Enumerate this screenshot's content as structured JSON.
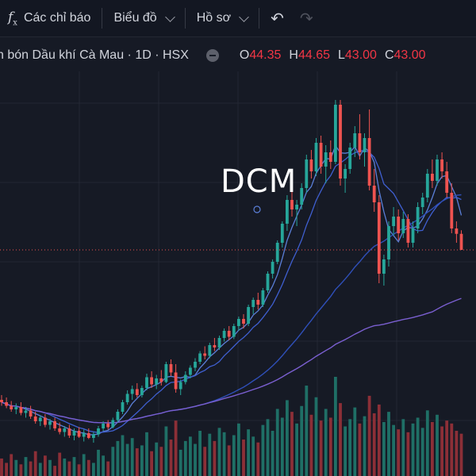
{
  "toolbar": {
    "indicators_icon": "function-fx-icon",
    "indicators_label": "Các chỉ báo",
    "chart_type_label": "Biểu đồ",
    "profile_label": "Hồ sơ",
    "undo_icon": "undo-arrow-icon",
    "redo_icon": "redo-arrow-icon"
  },
  "legend": {
    "title": "n bón Dầu khí Cà Mau · 1D · HSX",
    "open_label": "O",
    "open": "44.35",
    "high_label": "H",
    "high": "44.65",
    "low_label": "L",
    "low": "43.00",
    "close_label": "C",
    "close": "43.00"
  },
  "symbol": "DCM",
  "colors": {
    "background": "#161a25",
    "up": "#26a69a",
    "down": "#ef5350",
    "ma_fast": "#5b7fd8",
    "ma_mid": "#3f5fd0",
    "ma_slow": "#7a5fd0"
  },
  "chart_data": {
    "type": "candlestick",
    "last_price": 43.0,
    "candles": [
      {
        "o": 30.4,
        "h": 30.8,
        "l": 29.9,
        "c": 30.2
      },
      {
        "o": 30.2,
        "h": 30.6,
        "l": 29.7,
        "c": 29.9
      },
      {
        "o": 29.9,
        "h": 30.3,
        "l": 29.4,
        "c": 29.6
      },
      {
        "o": 29.6,
        "h": 30.1,
        "l": 29.2,
        "c": 29.8
      },
      {
        "o": 29.8,
        "h": 30.2,
        "l": 29.1,
        "c": 29.3
      },
      {
        "o": 29.3,
        "h": 29.8,
        "l": 28.9,
        "c": 29.5
      },
      {
        "o": 29.5,
        "h": 29.9,
        "l": 28.8,
        "c": 29.0
      },
      {
        "o": 29.0,
        "h": 29.4,
        "l": 28.4,
        "c": 28.6
      },
      {
        "o": 28.6,
        "h": 29.1,
        "l": 28.2,
        "c": 28.9
      },
      {
        "o": 28.9,
        "h": 29.2,
        "l": 28.1,
        "c": 28.3
      },
      {
        "o": 28.3,
        "h": 28.8,
        "l": 27.9,
        "c": 28.6
      },
      {
        "o": 28.6,
        "h": 28.9,
        "l": 27.8,
        "c": 28.0
      },
      {
        "o": 28.0,
        "h": 28.5,
        "l": 27.5,
        "c": 27.7
      },
      {
        "o": 27.7,
        "h": 28.2,
        "l": 27.3,
        "c": 28.0
      },
      {
        "o": 28.0,
        "h": 28.3,
        "l": 27.2,
        "c": 27.4
      },
      {
        "o": 27.4,
        "h": 28.0,
        "l": 27.0,
        "c": 27.8
      },
      {
        "o": 27.8,
        "h": 28.1,
        "l": 27.2,
        "c": 27.3
      },
      {
        "o": 27.3,
        "h": 27.9,
        "l": 26.9,
        "c": 27.6
      },
      {
        "o": 27.6,
        "h": 28.0,
        "l": 27.1,
        "c": 27.2
      },
      {
        "o": 27.2,
        "h": 27.7,
        "l": 26.8,
        "c": 27.5
      },
      {
        "o": 27.5,
        "h": 28.2,
        "l": 27.3,
        "c": 28.0
      },
      {
        "o": 28.0,
        "h": 28.6,
        "l": 27.8,
        "c": 28.4
      },
      {
        "o": 28.4,
        "h": 28.7,
        "l": 27.9,
        "c": 28.1
      },
      {
        "o": 28.1,
        "h": 28.9,
        "l": 28.0,
        "c": 28.7
      },
      {
        "o": 28.7,
        "h": 29.6,
        "l": 28.5,
        "c": 29.4
      },
      {
        "o": 29.4,
        "h": 30.4,
        "l": 29.2,
        "c": 30.2
      },
      {
        "o": 30.2,
        "h": 31.2,
        "l": 30.0,
        "c": 30.9
      },
      {
        "o": 30.9,
        "h": 31.6,
        "l": 30.4,
        "c": 31.3
      },
      {
        "o": 31.3,
        "h": 31.8,
        "l": 30.6,
        "c": 30.8
      },
      {
        "o": 30.8,
        "h": 31.6,
        "l": 30.6,
        "c": 31.4
      },
      {
        "o": 31.4,
        "h": 32.6,
        "l": 31.2,
        "c": 32.3
      },
      {
        "o": 32.3,
        "h": 32.8,
        "l": 31.4,
        "c": 31.7
      },
      {
        "o": 31.7,
        "h": 32.5,
        "l": 31.3,
        "c": 32.2
      },
      {
        "o": 32.2,
        "h": 32.9,
        "l": 31.6,
        "c": 31.9
      },
      {
        "o": 31.9,
        "h": 33.6,
        "l": 31.8,
        "c": 33.4
      },
      {
        "o": 33.4,
        "h": 33.8,
        "l": 32.4,
        "c": 32.7
      },
      {
        "o": 32.7,
        "h": 33.4,
        "l": 31.0,
        "c": 31.3
      },
      {
        "o": 31.3,
        "h": 32.1,
        "l": 30.8,
        "c": 31.9
      },
      {
        "o": 31.9,
        "h": 32.8,
        "l": 31.7,
        "c": 32.5
      },
      {
        "o": 32.5,
        "h": 33.3,
        "l": 32.2,
        "c": 33.1
      },
      {
        "o": 33.1,
        "h": 33.9,
        "l": 32.8,
        "c": 33.6
      },
      {
        "o": 33.6,
        "h": 34.5,
        "l": 33.4,
        "c": 34.3
      },
      {
        "o": 34.3,
        "h": 34.9,
        "l": 33.8,
        "c": 34.1
      },
      {
        "o": 34.1,
        "h": 35.2,
        "l": 33.9,
        "c": 35.0
      },
      {
        "o": 35.0,
        "h": 35.6,
        "l": 34.5,
        "c": 34.8
      },
      {
        "o": 34.8,
        "h": 35.8,
        "l": 34.6,
        "c": 35.6
      },
      {
        "o": 35.6,
        "h": 36.4,
        "l": 35.3,
        "c": 36.2
      },
      {
        "o": 36.2,
        "h": 36.6,
        "l": 35.4,
        "c": 35.7
      },
      {
        "o": 35.7,
        "h": 36.8,
        "l": 35.5,
        "c": 36.6
      },
      {
        "o": 36.6,
        "h": 37.4,
        "l": 36.2,
        "c": 37.2
      },
      {
        "o": 37.2,
        "h": 37.6,
        "l": 36.4,
        "c": 36.8
      },
      {
        "o": 36.8,
        "h": 38.4,
        "l": 36.6,
        "c": 38.2
      },
      {
        "o": 38.2,
        "h": 39.0,
        "l": 37.6,
        "c": 38.8
      },
      {
        "o": 38.8,
        "h": 39.4,
        "l": 38.0,
        "c": 38.4
      },
      {
        "o": 38.4,
        "h": 39.8,
        "l": 38.2,
        "c": 39.6
      },
      {
        "o": 39.6,
        "h": 41.2,
        "l": 39.4,
        "c": 41.0
      },
      {
        "o": 41.0,
        "h": 42.2,
        "l": 40.6,
        "c": 42.0
      },
      {
        "o": 42.0,
        "h": 43.8,
        "l": 41.8,
        "c": 43.6
      },
      {
        "o": 43.6,
        "h": 45.4,
        "l": 43.2,
        "c": 45.2
      },
      {
        "o": 45.2,
        "h": 47.6,
        "l": 44.6,
        "c": 47.2
      },
      {
        "o": 47.2,
        "h": 48.0,
        "l": 45.8,
        "c": 46.4
      },
      {
        "o": 46.4,
        "h": 47.2,
        "l": 45.0,
        "c": 46.8
      },
      {
        "o": 46.8,
        "h": 48.6,
        "l": 46.4,
        "c": 48.2
      },
      {
        "o": 48.2,
        "h": 51.0,
        "l": 47.8,
        "c": 50.6
      },
      {
        "o": 50.6,
        "h": 51.4,
        "l": 49.0,
        "c": 49.6
      },
      {
        "o": 49.6,
        "h": 52.4,
        "l": 49.2,
        "c": 52.0
      },
      {
        "o": 52.0,
        "h": 52.6,
        "l": 49.4,
        "c": 50.0
      },
      {
        "o": 50.0,
        "h": 51.8,
        "l": 48.6,
        "c": 51.2
      },
      {
        "o": 51.2,
        "h": 52.2,
        "l": 49.8,
        "c": 50.4
      },
      {
        "o": 50.4,
        "h": 55.6,
        "l": 50.2,
        "c": 55.2
      },
      {
        "o": 55.2,
        "h": 55.6,
        "l": 48.4,
        "c": 49.0
      },
      {
        "o": 49.0,
        "h": 50.2,
        "l": 47.8,
        "c": 49.8
      },
      {
        "o": 49.8,
        "h": 52.0,
        "l": 49.4,
        "c": 51.6
      },
      {
        "o": 51.6,
        "h": 53.4,
        "l": 50.8,
        "c": 52.8
      },
      {
        "o": 52.8,
        "h": 54.4,
        "l": 50.6,
        "c": 51.2
      },
      {
        "o": 51.2,
        "h": 52.8,
        "l": 50.0,
        "c": 52.4
      },
      {
        "o": 52.4,
        "h": 54.8,
        "l": 48.0,
        "c": 48.4
      },
      {
        "o": 48.4,
        "h": 49.8,
        "l": 46.2,
        "c": 47.0
      },
      {
        "o": 47.0,
        "h": 47.6,
        "l": 40.2,
        "c": 41.0
      },
      {
        "o": 41.0,
        "h": 42.6,
        "l": 40.0,
        "c": 42.2
      },
      {
        "o": 42.2,
        "h": 45.4,
        "l": 41.6,
        "c": 45.0
      },
      {
        "o": 45.0,
        "h": 46.6,
        "l": 44.2,
        "c": 45.8
      },
      {
        "o": 45.8,
        "h": 46.4,
        "l": 43.8,
        "c": 44.4
      },
      {
        "o": 44.4,
        "h": 46.2,
        "l": 44.0,
        "c": 45.6
      },
      {
        "o": 45.6,
        "h": 46.0,
        "l": 43.2,
        "c": 43.6
      },
      {
        "o": 43.6,
        "h": 45.4,
        "l": 43.2,
        "c": 44.8
      },
      {
        "o": 44.8,
        "h": 47.0,
        "l": 44.4,
        "c": 46.6
      },
      {
        "o": 46.6,
        "h": 47.8,
        "l": 46.0,
        "c": 47.4
      },
      {
        "o": 47.4,
        "h": 49.8,
        "l": 47.0,
        "c": 49.4
      },
      {
        "o": 49.4,
        "h": 50.6,
        "l": 48.2,
        "c": 48.8
      },
      {
        "o": 48.8,
        "h": 51.0,
        "l": 48.4,
        "c": 50.6
      },
      {
        "o": 50.6,
        "h": 51.2,
        "l": 49.0,
        "c": 49.6
      },
      {
        "o": 49.6,
        "h": 50.4,
        "l": 47.4,
        "c": 47.8
      },
      {
        "o": 47.8,
        "h": 48.6,
        "l": 44.4,
        "c": 44.8
      },
      {
        "o": 44.8,
        "h": 45.4,
        "l": 43.6,
        "c": 44.35
      },
      {
        "o": 44.35,
        "h": 44.65,
        "l": 43.0,
        "c": 43.0
      }
    ],
    "volumes": [
      1.2,
      0.9,
      1.5,
      1.1,
      0.8,
      1.3,
      1.0,
      1.7,
      0.9,
      1.4,
      1.1,
      0.7,
      1.6,
      1.2,
      1.0,
      1.3,
      0.8,
      1.5,
      1.1,
      0.9,
      1.8,
      1.4,
      1.0,
      2.0,
      2.4,
      2.8,
      2.2,
      2.6,
      1.9,
      2.1,
      3.0,
      1.7,
      2.3,
      2.0,
      3.4,
      2.5,
      3.8,
      1.8,
      2.4,
      2.7,
      2.2,
      3.1,
      2.0,
      2.9,
      2.4,
      3.3,
      3.0,
      2.1,
      2.8,
      3.6,
      2.5,
      3.2,
      2.7,
      2.3,
      3.5,
      3.9,
      3.1,
      4.6,
      4.0,
      5.2,
      4.4,
      3.6,
      4.8,
      6.2,
      4.2,
      5.4,
      3.8,
      4.6,
      4.0,
      6.8,
      5.0,
      3.4,
      3.9,
      4.7,
      3.6,
      4.1,
      5.5,
      4.3,
      4.9,
      3.7,
      4.4,
      3.5,
      3.2,
      3.9,
      3.0,
      3.6,
      4.0,
      3.3,
      4.5,
      3.7,
      4.2,
      3.4,
      3.8,
      3.6,
      3.1,
      2.9
    ]
  }
}
